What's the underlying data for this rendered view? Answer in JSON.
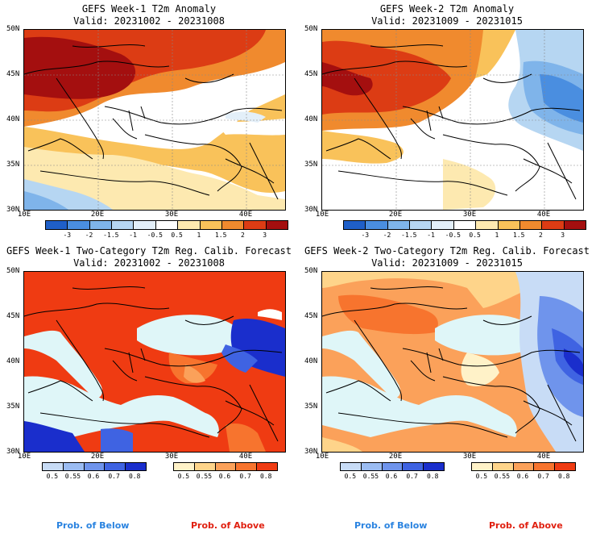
{
  "panels": [
    {
      "title": "GEFS Week-1 T2m Anomaly",
      "valid": "Valid: 20231002 - 20231008"
    },
    {
      "title": "GEFS Week-2 T2m Anomaly",
      "valid": "Valid: 20231009 - 20231015"
    },
    {
      "title": "GEFS Week-1 Two-Category T2m Reg. Calib. Forecast",
      "valid": "Valid: 20231002 - 20231008"
    },
    {
      "title": "GEFS Week-2 Two-Category T2m Reg. Calib. Forecast",
      "valid": "Valid: 20231009 - 20231015"
    }
  ],
  "axes": {
    "lat_labels": [
      "50N",
      "45N",
      "40N",
      "35N",
      "30N"
    ],
    "lon_labels": [
      "10E",
      "20E",
      "30E",
      "40E"
    ]
  },
  "anomaly_colorbar": {
    "labels": [
      "-3",
      "-2",
      "-1.5",
      "-1",
      "-0.5",
      "0.5",
      "1",
      "1.5",
      "2",
      "3"
    ],
    "colors": [
      "#1f5fc8",
      "#4a8ee0",
      "#7fb4ea",
      "#b6d6f2",
      "#e3eff9",
      "#ffffff",
      "#fde9b0",
      "#f9c25a",
      "#f08a2e",
      "#dc3c14",
      "#a40f0f"
    ]
  },
  "prob_below": {
    "labels": [
      "0.5",
      "0.55",
      "0.6",
      "0.7",
      "0.8"
    ],
    "colors": [
      "#c8dcf6",
      "#9bbcf2",
      "#6f94ec",
      "#3f63e2",
      "#1a2ecc"
    ]
  },
  "prob_above": {
    "labels": [
      "0.5",
      "0.55",
      "0.6",
      "0.7",
      "0.8"
    ],
    "colors": [
      "#fff2c8",
      "#fed48a",
      "#fba15a",
      "#f7742e",
      "#ef3b12"
    ]
  },
  "legend": {
    "below": "Prob. of Below",
    "above": "Prob. of Above",
    "below_color": "#2a83e0",
    "above_color": "#e02010"
  },
  "colors": {
    "sea": "#dff6f8",
    "coast": "#000000"
  }
}
